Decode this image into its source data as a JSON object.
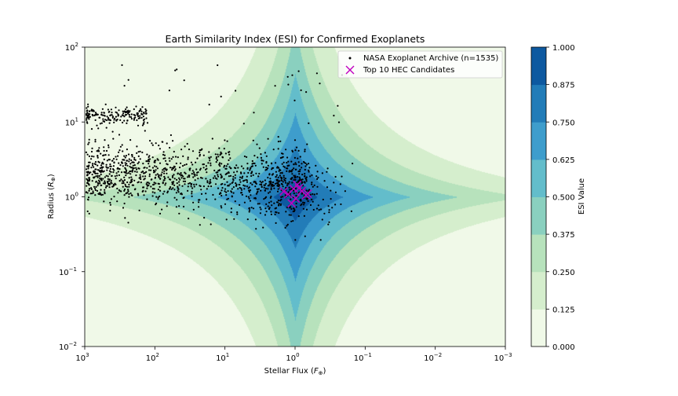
{
  "chart_data": {
    "type": "scatter",
    "title": "Earth Similarity Index (ESI) for Confirmed Exoplanets",
    "xlabel": "Stellar Flux (F⊕)",
    "ylabel": "Radius (R⊕)",
    "x_scale": "log",
    "y_scale": "log",
    "x_inverted": true,
    "xlim": [
      1000,
      0.001
    ],
    "ylim": [
      0.01,
      100
    ],
    "x_ticks": [
      {
        "value": 1000,
        "base": "10",
        "exp": "3"
      },
      {
        "value": 100,
        "base": "10",
        "exp": "2"
      },
      {
        "value": 10,
        "base": "10",
        "exp": "1"
      },
      {
        "value": 1,
        "base": "10",
        "exp": "0"
      },
      {
        "value": 0.1,
        "base": "10",
        "exp": "−1"
      },
      {
        "value": 0.01,
        "base": "10",
        "exp": "−2"
      },
      {
        "value": 0.001,
        "base": "10",
        "exp": "−3"
      }
    ],
    "y_ticks": [
      {
        "value": 0.01,
        "base": "10",
        "exp": "−2"
      },
      {
        "value": 0.1,
        "base": "10",
        "exp": "−1"
      },
      {
        "value": 1,
        "base": "10",
        "exp": "0"
      },
      {
        "value": 10,
        "base": "10",
        "exp": "1"
      },
      {
        "value": 100,
        "base": "10",
        "exp": "2"
      }
    ],
    "contour": {
      "description": "ESI background field, peak 1.0 at flux=1, radius=1",
      "levels": [
        0,
        0.125,
        0.25,
        0.375,
        0.5,
        0.625,
        0.75,
        0.875,
        1.0
      ],
      "colors": [
        "#f0f9e8",
        "#d5eecd",
        "#b7e2bc",
        "#8ad0bf",
        "#63bdcb",
        "#3e9dcc",
        "#227cb8",
        "#0d59a0"
      ]
    },
    "colorbar": {
      "label": "ESI Value",
      "tick_labels": [
        "0.000",
        "0.125",
        "0.250",
        "0.375",
        "0.500",
        "0.625",
        "0.750",
        "0.875",
        "1.000"
      ]
    },
    "series": [
      {
        "name": "NASA Exoplanet Archive (n=1535)",
        "marker": "dot",
        "color": "#000000",
        "note": "1535 points; rendered from a clustered sample",
        "count": 1535
      },
      {
        "name": "Top 10 HEC Candidates",
        "marker": "x",
        "color": "#c000c0",
        "points": [
          {
            "flux": 1.45,
            "radius": 1.18
          },
          {
            "flux": 1.25,
            "radius": 1.08
          },
          {
            "flux": 1.05,
            "radius": 1.28
          },
          {
            "flux": 0.93,
            "radius": 1.45
          },
          {
            "flux": 1.12,
            "radius": 0.82
          },
          {
            "flux": 0.98,
            "radius": 0.95
          },
          {
            "flux": 0.8,
            "radius": 1.2
          },
          {
            "flux": 0.66,
            "radius": 1.1
          },
          {
            "flux": 0.7,
            "radius": 1.05
          },
          {
            "flux": 0.88,
            "radius": 1.3
          }
        ]
      }
    ],
    "legend": {
      "position": "top-right",
      "entries": [
        "NASA Exoplanet Archive (n=1535)",
        "Top 10 HEC Candidates"
      ]
    }
  }
}
